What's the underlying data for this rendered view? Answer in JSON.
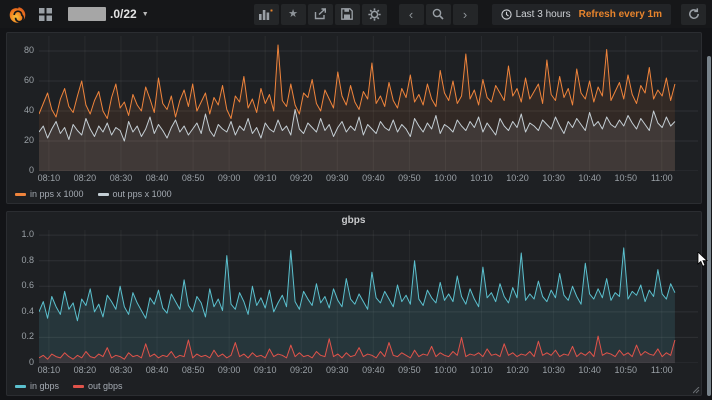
{
  "navbar": {
    "title_redacted": true,
    "title_suffix": ".0/22",
    "caret": "▼",
    "icons": [
      "grafana-logo",
      "dashboards-grid",
      "add-panel",
      "star",
      "share",
      "save",
      "settings",
      "chevron-left",
      "zoom-out",
      "chevron-right",
      "clock",
      "refresh"
    ],
    "star_glyph": "★",
    "time_range": "Last 3 hours",
    "refresh_label": "Refresh every 1m"
  },
  "colors": {
    "navbar_bg": "#161719",
    "page_bg": "#131417",
    "panel_bg": "#1e2023",
    "accent_orange": "#e8842c",
    "series_in_pps": "#EF843C",
    "series_out_pps": "#C4CED4",
    "series_in_gbps": "#5BC0CE",
    "series_out_gbps": "#E0534A",
    "grid_line": "rgba(255,255,255,0.07)",
    "axis_text": "#9aa0a6"
  },
  "chart_data": [
    {
      "type": "line",
      "title": "",
      "ylabel": "pps x 1000",
      "ylim": [
        0,
        90
      ],
      "ymax": 90,
      "grid": true,
      "legend_position": "bottom",
      "yticks": [
        "0",
        "20",
        "40",
        "60",
        "80"
      ],
      "x_tick_labels": [
        "08:10",
        "08:20",
        "08:30",
        "08:40",
        "08:50",
        "09:00",
        "09:10",
        "09:20",
        "09:30",
        "09:40",
        "09:50",
        "10:00",
        "10:10",
        "10:20",
        "10:30",
        "10:40",
        "10:50",
        "11:00"
      ],
      "series": [
        {
          "name": "in pps x 1000",
          "color": "#EF843C",
          "fill_opacity": 0.1,
          "values": [
            38,
            45,
            52,
            41,
            36,
            48,
            55,
            43,
            39,
            50,
            60,
            44,
            38,
            47,
            53,
            40,
            35,
            49,
            58,
            42,
            46,
            37,
            51,
            44,
            40,
            56,
            48,
            39,
            62,
            45,
            41,
            50,
            36,
            47,
            54,
            43,
            58,
            40,
            46,
            52,
            38,
            49,
            44,
            57,
            41,
            35,
            50,
            46,
            63,
            42,
            48,
            39,
            55,
            45,
            51,
            40,
            84,
            47,
            43,
            58,
            44,
            38,
            52,
            49,
            61,
            45,
            40,
            54,
            48,
            42,
            66,
            50,
            44,
            57,
            46,
            41,
            53,
            48,
            72,
            45,
            50,
            43,
            59,
            47,
            42,
            55,
            49,
            64,
            46,
            51,
            44,
            58,
            48,
            43,
            67,
            52,
            47,
            60,
            45,
            50,
            78,
            48,
            54,
            44,
            61,
            49,
            46,
            57,
            52,
            47,
            70,
            50,
            55,
            46,
            62,
            48,
            53,
            58,
            45,
            74,
            51,
            47,
            63,
            49,
            55,
            44,
            68,
            52,
            48,
            60,
            46,
            56,
            50,
            81,
            47,
            53,
            59,
            48,
            64,
            51,
            45,
            57,
            52,
            69,
            48,
            54,
            50,
            62,
            47,
            58
          ]
        },
        {
          "name": "out pps x 1000",
          "color": "#C4CED4",
          "fill_opacity": 0.1,
          "values": [
            26,
            30,
            22,
            28,
            33,
            25,
            29,
            21,
            31,
            27,
            24,
            35,
            28,
            23,
            30,
            26,
            32,
            24,
            29,
            27,
            20,
            33,
            26,
            30,
            23,
            28,
            36,
            25,
            31,
            27,
            22,
            29,
            34,
            26,
            30,
            24,
            28,
            32,
            25,
            38,
            27,
            23,
            31,
            28,
            26,
            33,
            24,
            30,
            27,
            35,
            25,
            29,
            22,
            32,
            28,
            26,
            34,
            27,
            30,
            24,
            41,
            28,
            25,
            32,
            29,
            26,
            35,
            27,
            31,
            23,
            29,
            33,
            26,
            30,
            27,
            36,
            24,
            31,
            28,
            25,
            33,
            29,
            27,
            34,
            26,
            31,
            28,
            23,
            35,
            30,
            26,
            32,
            28,
            37,
            25,
            31,
            29,
            26,
            34,
            30,
            27,
            33,
            29,
            36,
            26,
            32,
            28,
            24,
            35,
            30,
            27,
            33,
            29,
            38,
            26,
            32,
            30,
            27,
            34,
            31,
            28,
            36,
            30,
            25,
            33,
            29,
            35,
            31,
            27,
            39,
            30,
            33,
            28,
            36,
            31,
            29,
            34,
            30,
            37,
            32,
            28,
            35,
            31,
            27,
            40,
            32,
            29,
            36,
            30,
            33
          ]
        }
      ]
    },
    {
      "type": "line",
      "title": "gbps",
      "ylabel": "gbps",
      "ylim": [
        0,
        1.0
      ],
      "ymax": 1.04,
      "grid": true,
      "legend_position": "bottom",
      "yticks": [
        "0",
        "0.2",
        "0.4",
        "0.6",
        "0.8",
        "1.0"
      ],
      "x_tick_labels": [
        "08:10",
        "08:20",
        "08:30",
        "08:40",
        "08:50",
        "09:00",
        "09:10",
        "09:20",
        "09:30",
        "09:40",
        "09:50",
        "10:00",
        "10:10",
        "10:20",
        "10:30",
        "10:40",
        "10:50",
        "11:00"
      ],
      "series": [
        {
          "name": "in gbps",
          "color": "#5BC0CE",
          "fill_opacity": 0.14,
          "values": [
            0.4,
            0.48,
            0.35,
            0.52,
            0.44,
            0.38,
            0.56,
            0.42,
            0.47,
            0.33,
            0.5,
            0.45,
            0.58,
            0.4,
            0.46,
            0.36,
            0.53,
            0.48,
            0.42,
            0.6,
            0.44,
            0.38,
            0.55,
            0.47,
            0.41,
            0.35,
            0.51,
            0.46,
            0.57,
            0.43,
            0.39,
            0.54,
            0.48,
            0.42,
            0.65,
            0.45,
            0.4,
            0.52,
            0.47,
            0.36,
            0.58,
            0.44,
            0.5,
            0.41,
            0.84,
            0.46,
            0.42,
            0.55,
            0.48,
            0.38,
            0.6,
            0.45,
            0.51,
            0.43,
            0.57,
            0.4,
            0.47,
            0.53,
            0.44,
            0.88,
            0.48,
            0.42,
            0.56,
            0.5,
            0.45,
            0.62,
            0.47,
            0.52,
            0.43,
            0.58,
            0.49,
            0.44,
            0.66,
            0.5,
            0.46,
            0.54,
            0.48,
            0.42,
            0.71,
            0.51,
            0.47,
            0.56,
            0.5,
            0.44,
            0.61,
            0.48,
            0.53,
            0.46,
            0.8,
            0.5,
            0.45,
            0.57,
            0.51,
            0.47,
            0.63,
            0.49,
            0.54,
            0.48,
            0.68,
            0.52,
            0.46,
            0.58,
            0.5,
            0.44,
            0.75,
            0.51,
            0.55,
            0.48,
            0.62,
            0.52,
            0.47,
            0.59,
            0.51,
            0.86,
            0.49,
            0.54,
            0.5,
            0.64,
            0.52,
            0.48,
            0.57,
            0.51,
            0.7,
            0.53,
            0.49,
            0.6,
            0.52,
            0.46,
            0.78,
            0.54,
            0.5,
            0.58,
            0.51,
            0.66,
            0.49,
            0.55,
            0.52,
            0.9,
            0.5,
            0.56,
            0.53,
            0.61,
            0.48,
            0.57,
            0.52,
            0.73,
            0.54,
            0.5,
            0.62,
            0.55
          ]
        },
        {
          "name": "out gbps",
          "color": "#E0534A",
          "fill_opacity": 0.1,
          "values": [
            0.04,
            0.06,
            0.03,
            0.07,
            0.05,
            0.04,
            0.08,
            0.05,
            0.03,
            0.06,
            0.04,
            0.09,
            0.05,
            0.04,
            0.07,
            0.05,
            0.12,
            0.04,
            0.06,
            0.05,
            0.03,
            0.08,
            0.05,
            0.06,
            0.04,
            0.15,
            0.05,
            0.07,
            0.04,
            0.06,
            0.05,
            0.09,
            0.04,
            0.06,
            0.05,
            0.18,
            0.04,
            0.07,
            0.05,
            0.06,
            0.04,
            0.1,
            0.05,
            0.07,
            0.04,
            0.06,
            0.16,
            0.05,
            0.07,
            0.04,
            0.08,
            0.05,
            0.06,
            0.04,
            0.11,
            0.05,
            0.07,
            0.06,
            0.04,
            0.14,
            0.05,
            0.08,
            0.05,
            0.06,
            0.04,
            0.09,
            0.06,
            0.05,
            0.19,
            0.05,
            0.07,
            0.04,
            0.08,
            0.05,
            0.06,
            0.12,
            0.05,
            0.07,
            0.06,
            0.04,
            0.09,
            0.05,
            0.16,
            0.06,
            0.05,
            0.08,
            0.06,
            0.04,
            0.1,
            0.05,
            0.07,
            0.06,
            0.13,
            0.05,
            0.08,
            0.06,
            0.05,
            0.09,
            0.06,
            0.2,
            0.05,
            0.07,
            0.06,
            0.08,
            0.05,
            0.11,
            0.06,
            0.07,
            0.05,
            0.15,
            0.06,
            0.08,
            0.05,
            0.07,
            0.06,
            0.09,
            0.05,
            0.17,
            0.06,
            0.08,
            0.06,
            0.1,
            0.05,
            0.07,
            0.06,
            0.13,
            0.05,
            0.08,
            0.06,
            0.09,
            0.05,
            0.21,
            0.06,
            0.08,
            0.07,
            0.05,
            0.1,
            0.06,
            0.08,
            0.05,
            0.14,
            0.06,
            0.09,
            0.07,
            0.06,
            0.11,
            0.05,
            0.08,
            0.06,
            0.18
          ]
        }
      ]
    }
  ]
}
